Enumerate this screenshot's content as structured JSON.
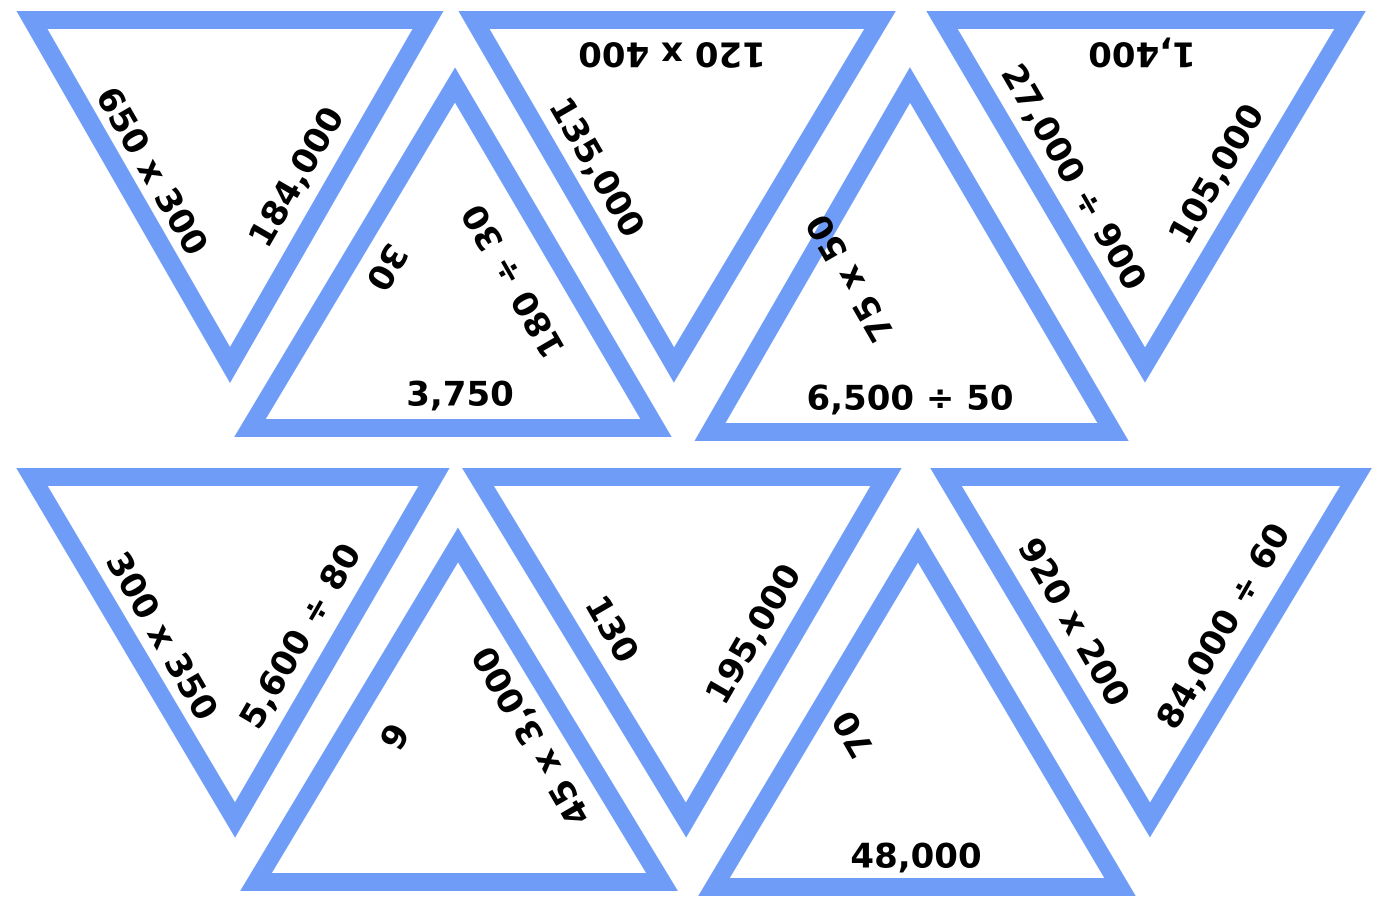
{
  "colors": {
    "triangle_border": "#6f9cf7",
    "text": "#000000",
    "background": "#ffffff"
  },
  "triangles": [
    {
      "name": "top-row-triangle-1",
      "labels": [
        "650 x 300",
        "184,000"
      ]
    },
    {
      "name": "top-row-triangle-2",
      "labels": [
        "30",
        "180 ÷ 30",
        "3,750"
      ]
    },
    {
      "name": "top-row-triangle-3",
      "labels": [
        "120 x 400",
        "135,000"
      ]
    },
    {
      "name": "top-row-triangle-4",
      "labels": [
        "75 x 50",
        "6,500 ÷ 50"
      ]
    },
    {
      "name": "top-row-triangle-5",
      "labels": [
        "1,400",
        "27,000 ÷ 900",
        "105,000"
      ]
    },
    {
      "name": "bottom-row-triangle-1",
      "labels": [
        "300 x 350",
        "5,600 ÷ 80"
      ]
    },
    {
      "name": "bottom-row-triangle-2",
      "labels": [
        "6",
        "45 x 3,000"
      ]
    },
    {
      "name": "bottom-row-triangle-3",
      "labels": [
        "130",
        "195,000"
      ]
    },
    {
      "name": "bottom-row-triangle-4",
      "labels": [
        "70",
        "48,000"
      ]
    },
    {
      "name": "bottom-row-triangle-5",
      "labels": [
        "920 x 200",
        "84,000 ÷ 60"
      ]
    }
  ]
}
